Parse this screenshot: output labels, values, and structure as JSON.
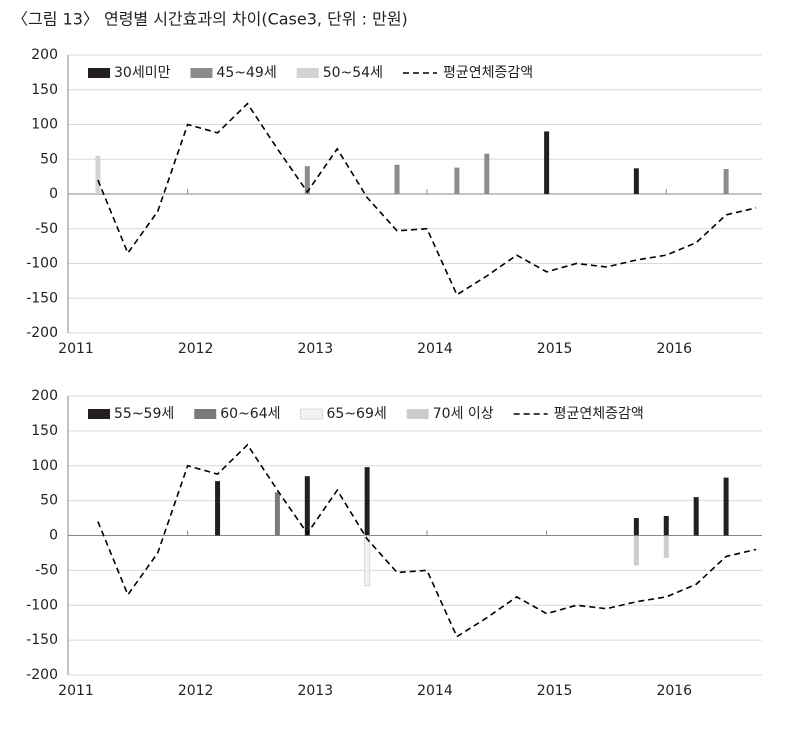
{
  "chart_data": [
    {
      "type": "bar",
      "title": "〈그림 13〉 연령별 시간효과의 차이(Case3,  단위 : 만원)",
      "xlim": [
        2011,
        2016.8
      ],
      "xticks": [
        2011,
        2012,
        2013,
        2014,
        2015,
        2016
      ],
      "ylim": [
        -200,
        200
      ],
      "yticks": [
        -200,
        -150,
        -100,
        -50,
        0,
        50,
        100,
        150,
        200
      ],
      "grid": true,
      "legend": "top-left",
      "series": [
        {
          "name": "30세미만",
          "type": "bar",
          "color": "#231f20",
          "x": [
            2015.0,
            2015.75
          ],
          "values": [
            90,
            37
          ]
        },
        {
          "name": "45~49세",
          "type": "bar",
          "color": "#8c8c8c",
          "x": [
            2013.0,
            2013.75,
            2014.25,
            2014.5,
            2016.5
          ],
          "values": [
            40,
            42,
            38,
            58,
            36
          ]
        },
        {
          "name": "50~54세",
          "type": "bar",
          "color": "#d3d3d3",
          "x": [
            2011.25
          ],
          "values": [
            55
          ]
        },
        {
          "name": "평균연체증감액",
          "type": "line",
          "dashed": true,
          "color": "#000000",
          "x": [
            2011.25,
            2011.5,
            2011.75,
            2012,
            2012.25,
            2012.5,
            2012.75,
            2013,
            2013.25,
            2013.5,
            2013.75,
            2014,
            2014.25,
            2014.5,
            2014.75,
            2015,
            2015.25,
            2015.5,
            2015.75,
            2016,
            2016.25,
            2016.5,
            2016.75
          ],
          "values": [
            20,
            -85,
            -25,
            100,
            88,
            130,
            65,
            3,
            65,
            -5,
            -53,
            -50,
            -145,
            -118,
            -88,
            -112,
            -100,
            -105,
            -95,
            -88,
            -70,
            -30,
            -20
          ]
        }
      ]
    },
    {
      "type": "bar",
      "xlim": [
        2011,
        2016.8
      ],
      "xticks": [
        2011,
        2012,
        2013,
        2014,
        2015,
        2016
      ],
      "ylim": [
        -200,
        200
      ],
      "yticks": [
        -200,
        -150,
        -100,
        -50,
        0,
        50,
        100,
        150,
        200
      ],
      "grid": true,
      "legend": "top-left",
      "series": [
        {
          "name": "55~59세",
          "type": "bar",
          "color": "#231f20",
          "x": [
            2012.25,
            2013.0,
            2013.5,
            2015.75,
            2016.0,
            2016.25,
            2016.5
          ],
          "values": [
            78,
            85,
            98,
            25,
            28,
            55,
            83
          ]
        },
        {
          "name": "60~64세",
          "type": "bar",
          "color": "#7a7a7a",
          "x": [
            2012.75
          ],
          "values": [
            62
          ]
        },
        {
          "name": "65~69세",
          "type": "bar",
          "color": "#f2f2f2",
          "x": [
            2013.5
          ],
          "values": [
            -72
          ]
        },
        {
          "name": "70세 이상",
          "type": "bar",
          "color": "#cccccc",
          "x": [
            2015.75,
            2016.0
          ],
          "values": [
            -43,
            -32
          ]
        },
        {
          "name": "평균연체증감액",
          "type": "line",
          "dashed": true,
          "color": "#000000",
          "x": [
            2011.25,
            2011.5,
            2011.75,
            2012,
            2012.25,
            2012.5,
            2012.75,
            2013,
            2013.25,
            2013.5,
            2013.75,
            2014,
            2014.25,
            2014.5,
            2014.75,
            2015,
            2015.25,
            2015.5,
            2015.75,
            2016,
            2016.25,
            2016.5,
            2016.75
          ],
          "values": [
            20,
            -85,
            -25,
            100,
            88,
            130,
            65,
            3,
            65,
            -5,
            -53,
            -50,
            -145,
            -118,
            -88,
            -112,
            -100,
            -105,
            -95,
            -88,
            -70,
            -30,
            -20
          ]
        }
      ]
    }
  ]
}
